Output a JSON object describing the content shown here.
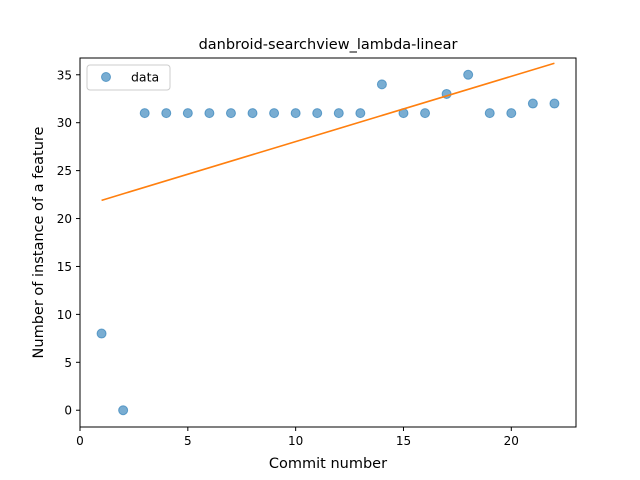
{
  "chart_data": {
    "type": "scatter",
    "title": "danbroid-searchview_lambda-linear",
    "xlabel": "Commit number",
    "ylabel": "Number of instance of a feature",
    "xlim": [
      0,
      23
    ],
    "ylim": [
      -1.75,
      36.75
    ],
    "xticks": [
      0,
      5,
      10,
      15,
      20
    ],
    "yticks": [
      0,
      5,
      10,
      15,
      20,
      25,
      30,
      35
    ],
    "grid": false,
    "legend_position": "upper-left",
    "series": [
      {
        "name": "data",
        "kind": "scatter",
        "color": "#1f77b4",
        "x": [
          1,
          2,
          3,
          4,
          5,
          6,
          7,
          8,
          9,
          10,
          11,
          12,
          13,
          14,
          15,
          16,
          17,
          18,
          19,
          20,
          21,
          22
        ],
        "y": [
          8,
          0,
          31,
          31,
          31,
          31,
          31,
          31,
          31,
          31,
          31,
          31,
          31,
          34,
          31,
          31,
          33,
          35,
          31,
          31,
          32,
          32
        ]
      },
      {
        "kind": "line",
        "color": "#ff7f0e",
        "x": [
          1,
          22
        ],
        "y": [
          21.9,
          36.2
        ]
      }
    ]
  }
}
